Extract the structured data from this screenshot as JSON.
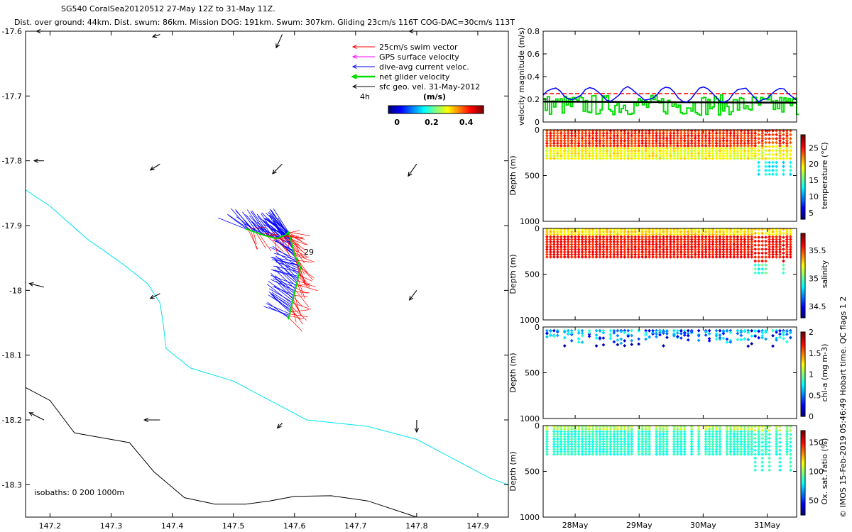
{
  "header": {
    "line1": "SG540 CoralSea20120512 27-May 12Z to 31-May 11Z.",
    "line2": "Dist. over ground: 44km. Dist. swum: 86km. Mission DOG: 191km. Swum: 307km. Gliding 23cm/s 116T COG-DAC=30cm/s 113T"
  },
  "map": {
    "xticks": [
      "147.2",
      "147.3",
      "147.4",
      "147.5",
      "147.6",
      "147.7",
      "147.8",
      "147.9"
    ],
    "xvals": [
      147.2,
      147.3,
      147.4,
      147.5,
      147.6,
      147.7,
      147.8,
      147.9
    ],
    "yticks": [
      "-17.6",
      "-17.7",
      "-17.8",
      "-17.9",
      "-18",
      "-18.1",
      "-18.2",
      "-18.3"
    ],
    "yvals": [
      -17.6,
      -17.7,
      -17.8,
      -17.9,
      -18.0,
      -18.1,
      -18.2,
      -18.3
    ],
    "xlim": [
      147.16,
      147.95
    ],
    "ylim": [
      -18.35,
      -17.6
    ],
    "legend": [
      {
        "label": "25cm/s swim vector",
        "color": "#ff0000"
      },
      {
        "label": "GPS surface velocity",
        "color": "#ff00ff"
      },
      {
        "label": "dive-avg current veloc.",
        "color": "#0000ff"
      },
      {
        "label": "net glider velocity",
        "color": "#00dd00"
      },
      {
        "label": "sfc geo. vel. 31-May-2012",
        "color": "#000000"
      }
    ],
    "time_marker": "4h",
    "colorbar": {
      "unit": "(m/s)",
      "ticks": [
        "0",
        "0.2",
        "0.4"
      ],
      "tickvals": [
        0,
        0.2,
        0.4
      ],
      "range": [
        -0.05,
        0.5
      ]
    },
    "day_label": "29",
    "isobath_label": "isobaths: 0   200  1000m",
    "isobath_200": {
      "color": "#00e5ee",
      "points": [
        [
          147.16,
          -17.845
        ],
        [
          147.2,
          -17.87
        ],
        [
          147.26,
          -17.92
        ],
        [
          147.32,
          -17.96
        ],
        [
          147.36,
          -17.99
        ],
        [
          147.38,
          -18.02
        ],
        [
          147.385,
          -18.05
        ],
        [
          147.39,
          -18.09
        ],
        [
          147.43,
          -18.12
        ],
        [
          147.5,
          -18.14
        ],
        [
          147.56,
          -18.17
        ],
        [
          147.62,
          -18.2
        ],
        [
          147.72,
          -18.21
        ],
        [
          147.8,
          -18.23
        ],
        [
          147.86,
          -18.26
        ],
        [
          147.92,
          -18.29
        ],
        [
          147.95,
          -18.3
        ]
      ]
    },
    "isobath_1000": {
      "color": "#000000",
      "points": [
        [
          147.16,
          -18.15
        ],
        [
          147.2,
          -18.17
        ],
        [
          147.24,
          -18.22
        ],
        [
          147.33,
          -18.235
        ],
        [
          147.37,
          -18.28
        ],
        [
          147.42,
          -18.32
        ],
        [
          147.47,
          -18.33
        ],
        [
          147.52,
          -18.33
        ],
        [
          147.56,
          -18.325
        ],
        [
          147.6,
          -18.318
        ],
        [
          147.66,
          -18.317
        ],
        [
          147.72,
          -18.325
        ],
        [
          147.8,
          -18.35
        ]
      ]
    },
    "sfc_vectors": [
      {
        "lon": 147.19,
        "lat": -17.6,
        "u": -0.3,
        "v": 0.0
      },
      {
        "lon": 147.38,
        "lat": -17.605,
        "u": -0.3,
        "v": -0.1
      },
      {
        "lon": 147.58,
        "lat": -17.605,
        "u": -0.25,
        "v": -0.55
      },
      {
        "lon": 147.8,
        "lat": -17.6,
        "u": -0.3,
        "v": 0.0
      },
      {
        "lon": 147.19,
        "lat": -17.8,
        "u": -0.4,
        "v": 0.0
      },
      {
        "lon": 147.38,
        "lat": -17.805,
        "u": -0.4,
        "v": -0.25
      },
      {
        "lon": 147.58,
        "lat": -17.805,
        "u": -0.4,
        "v": -0.4
      },
      {
        "lon": 147.8,
        "lat": -17.805,
        "u": -0.35,
        "v": -0.5
      },
      {
        "lon": 147.19,
        "lat": -17.995,
        "u": -0.6,
        "v": 0.15
      },
      {
        "lon": 147.38,
        "lat": -18.005,
        "u": -0.4,
        "v": -0.2
      },
      {
        "lon": 147.8,
        "lat": -18.0,
        "u": -0.3,
        "v": -0.4
      },
      {
        "lon": 147.19,
        "lat": -18.2,
        "u": -0.6,
        "v": 0.3
      },
      {
        "lon": 147.38,
        "lat": -18.2,
        "u": -0.65,
        "v": 0.0
      },
      {
        "lon": 147.58,
        "lat": -18.205,
        "u": -0.2,
        "v": -0.2
      },
      {
        "lon": 147.8,
        "lat": -18.2,
        "u": 0.0,
        "v": -0.5
      }
    ]
  },
  "panels": {
    "x_ticks": [
      "28May",
      "29May",
      "30May",
      "31May"
    ],
    "x_tickvals": [
      28.0,
      29.0,
      30.0,
      31.0
    ],
    "x_range": [
      27.5,
      31.46
    ],
    "velocity": {
      "ylabel": "velocity magnitude (m/s)",
      "yticks": [
        "0",
        "0.2",
        "0.4",
        "0.6",
        "0.8"
      ],
      "tickvals": [
        0,
        0.2,
        0.4,
        0.6,
        0.8
      ],
      "ylim": [
        0,
        0.8
      ]
    },
    "depth_panels": [
      {
        "id": "temperature",
        "ylabel": "Depth (m)",
        "cblabel": "temperature (°C)",
        "cbticks": [
          "5",
          "10",
          "15",
          "20",
          "25"
        ],
        "cbvals": [
          5,
          10,
          15,
          20,
          25
        ],
        "cbrange": [
          3,
          29
        ],
        "yticks": [
          "0",
          "500",
          "1000"
        ]
      },
      {
        "id": "salinity",
        "ylabel": "Depth (m)",
        "cblabel": "salinity",
        "cbticks": [
          "34.5",
          "35",
          "35.5"
        ],
        "cbvals": [
          34.5,
          35,
          35.5
        ],
        "cbrange": [
          34.3,
          35.8
        ],
        "yticks": [
          "0",
          "500",
          "1000"
        ]
      },
      {
        "id": "chla",
        "ylabel": "Depth (m)",
        "cblabel": "chl-a (mg m-3)",
        "cbticks": [
          "0",
          "0.5",
          "1",
          "1.5",
          "2"
        ],
        "cbvals": [
          0,
          0.5,
          1,
          1.5,
          2
        ],
        "cbrange": [
          0,
          2
        ],
        "yticks": [
          "0",
          "500",
          "1000"
        ]
      },
      {
        "id": "oxygen",
        "ylabel": "Depth (m)",
        "cblabel": "Ox. sat. ratio (%)",
        "cbticks": [
          "50",
          "100",
          "150"
        ],
        "cbvals": [
          50,
          100,
          150
        ],
        "cbrange": [
          25,
          170
        ],
        "yticks": [
          "0",
          "500",
          "1000"
        ]
      }
    ],
    "footer_vertical": "© IMOS 15-Feb-2019 05:46:49 Hobart time. QC flags 1  2"
  },
  "colors": {
    "cyan": "#00e5ee",
    "red": "#ff0000",
    "blue": "#0000ff",
    "green": "#00dd00",
    "magenta": "#ff00ff"
  }
}
